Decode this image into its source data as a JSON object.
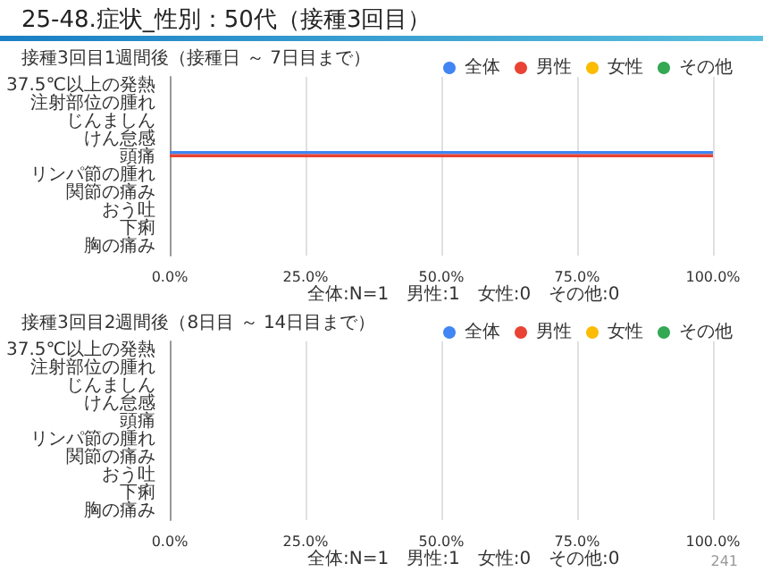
{
  "chart_data": [
    {
      "type": "bar",
      "orientation": "horizontal",
      "title": "25-48.症状_性別：50代（接種3回目）",
      "subtitle": "接種3回目1週間後（接種日 ～ 7日目まで）",
      "categories": [
        "37.5℃以上の発熱",
        "注射部位の腫れ",
        "じんましん",
        "けん怠感",
        "頭痛",
        "リンパ節の腫れ",
        "関節の痛み",
        "おう吐",
        "下痢",
        "胸の痛み"
      ],
      "series": [
        {
          "name": "全体",
          "color": "#4285f4",
          "values": [
            0,
            0,
            0,
            0,
            100,
            0,
            0,
            0,
            0,
            0
          ]
        },
        {
          "name": "男性",
          "color": "#ea4335",
          "values": [
            0,
            0,
            0,
            0,
            100,
            0,
            0,
            0,
            0,
            0
          ]
        },
        {
          "name": "女性",
          "color": "#fbbc04",
          "values": [
            0,
            0,
            0,
            0,
            0,
            0,
            0,
            0,
            0,
            0
          ]
        },
        {
          "name": "その他",
          "color": "#34a853",
          "values": [
            0,
            0,
            0,
            0,
            0,
            0,
            0,
            0,
            0,
            0
          ]
        }
      ],
      "xlim": [
        0,
        100
      ],
      "xticks": [
        {
          "value": 0,
          "label": "0.0%"
        },
        {
          "value": 25,
          "label": "25.0%"
        },
        {
          "value": 50,
          "label": "50.0%"
        },
        {
          "value": 75,
          "label": "75.0%"
        },
        {
          "value": 100,
          "label": "100.0%"
        }
      ],
      "grid": "x",
      "legend": "top",
      "annotations": [
        "全体:N=1　男性:1　女性:0　その他:0"
      ]
    },
    {
      "type": "bar",
      "orientation": "horizontal",
      "title": "接種3回目2週間後（8日目 ～ 14日目まで）",
      "categories": [
        "37.5℃以上の発熱",
        "注射部位の腫れ",
        "じんましん",
        "けん怠感",
        "頭痛",
        "リンパ節の腫れ",
        "関節の痛み",
        "おう吐",
        "下痢",
        "胸の痛み"
      ],
      "series": [
        {
          "name": "全体",
          "color": "#4285f4",
          "values": [
            0,
            0,
            0,
            0,
            0,
            0,
            0,
            0,
            0,
            0
          ]
        },
        {
          "name": "男性",
          "color": "#ea4335",
          "values": [
            0,
            0,
            0,
            0,
            0,
            0,
            0,
            0,
            0,
            0
          ]
        },
        {
          "name": "女性",
          "color": "#fbbc04",
          "values": [
            0,
            0,
            0,
            0,
            0,
            0,
            0,
            0,
            0,
            0
          ]
        },
        {
          "name": "その他",
          "color": "#34a853",
          "values": [
            0,
            0,
            0,
            0,
            0,
            0,
            0,
            0,
            0,
            0
          ]
        }
      ],
      "xlim": [
        0,
        100
      ],
      "xticks": [
        {
          "value": 0,
          "label": "0.0%"
        },
        {
          "value": 25,
          "label": "25.0%"
        },
        {
          "value": 50,
          "label": "50.0%"
        },
        {
          "value": 75,
          "label": "75.0%"
        },
        {
          "value": 100,
          "label": "100.0%"
        }
      ],
      "grid": "x",
      "legend": "top",
      "annotations": [
        "全体:N=1　男性:1　女性:0　その他:0",
        "241"
      ]
    }
  ]
}
